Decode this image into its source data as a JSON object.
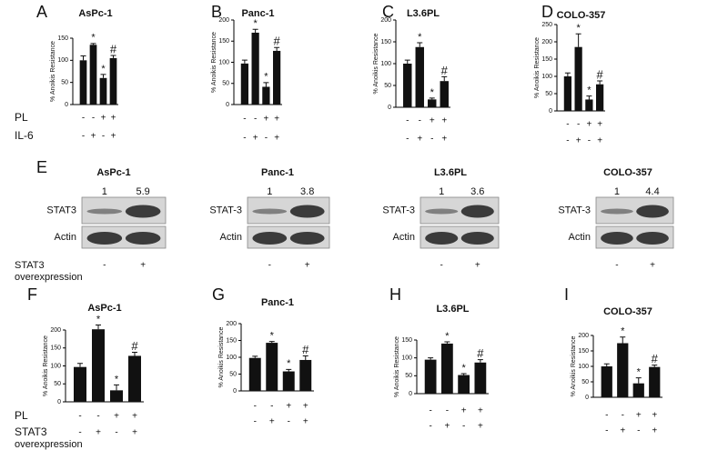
{
  "chart_data": [
    {
      "type": "bar",
      "letter": "A",
      "title": "AsPc-1",
      "y_label": "% Anoikis Resistance",
      "categories": [
        null,
        null,
        null,
        null
      ],
      "values": [
        100,
        135,
        60,
        105
      ],
      "errors": [
        10,
        3,
        8,
        6
      ],
      "markers": [
        null,
        "*",
        "*",
        "#"
      ],
      "color": "#111111",
      "ylim": [
        0,
        150
      ],
      "yticks": [
        0,
        50,
        100,
        150
      ],
      "rows": [
        {
          "label": "PL",
          "signs": [
            "-",
            "-",
            "+",
            "+"
          ]
        },
        {
          "label": "IL-6",
          "signs": [
            "-",
            "+",
            "-",
            "+"
          ]
        }
      ]
    },
    {
      "type": "bar",
      "letter": "B",
      "title": "Panc-1",
      "y_label": "% Anoikis Resistance",
      "categories": [
        null,
        null,
        null,
        null
      ],
      "values": [
        97,
        170,
        42,
        127
      ],
      "errors": [
        8,
        8,
        10,
        8
      ],
      "markers": [
        null,
        "*",
        "*",
        "#"
      ],
      "color": "#111111",
      "ylim": [
        0,
        200
      ],
      "yticks": [
        0,
        50,
        100,
        150,
        200
      ],
      "rows": [
        {
          "signs": [
            "-",
            "-",
            "+",
            "+"
          ]
        },
        {
          "signs": [
            "-",
            "+",
            "-",
            "+"
          ]
        }
      ]
    },
    {
      "type": "bar",
      "letter": "C",
      "title": "L3.6PL",
      "y_label": "% Anoikis Resistance",
      "categories": [
        null,
        null,
        null,
        null
      ],
      "values": [
        100,
        138,
        18,
        60
      ],
      "errors": [
        8,
        10,
        3,
        10
      ],
      "markers": [
        null,
        "*",
        "*",
        "#"
      ],
      "color": "#111111",
      "ylim": [
        0,
        200
      ],
      "yticks": [
        0,
        50,
        100,
        150,
        200
      ],
      "rows": [
        {
          "signs": [
            "-",
            "-",
            "+",
            "+"
          ]
        },
        {
          "signs": [
            "-",
            "+",
            "-",
            "+"
          ]
        }
      ]
    },
    {
      "type": "bar",
      "letter": "D",
      "title": "COLO-357",
      "y_label": "% Anoikis Resistance",
      "categories": [
        null,
        null,
        null,
        null
      ],
      "values": [
        100,
        185,
        33,
        77
      ],
      "errors": [
        10,
        38,
        10,
        10
      ],
      "markers": [
        null,
        "*",
        "*",
        "#"
      ],
      "color": "#111111",
      "ylim": [
        0,
        250
      ],
      "yticks": [
        0,
        50,
        100,
        150,
        200,
        250
      ],
      "rows": [
        {
          "signs": [
            "-",
            "-",
            "+",
            "+"
          ]
        },
        {
          "signs": [
            "-",
            "+",
            "-",
            "+"
          ]
        }
      ]
    },
    {
      "type": "bar",
      "letter": "F",
      "title": "AsPc-1",
      "y_label": "% Anoikis Resistance",
      "categories": [
        null,
        null,
        null,
        null
      ],
      "values": [
        97,
        202,
        32,
        128
      ],
      "errors": [
        10,
        12,
        15,
        10
      ],
      "markers": [
        null,
        "*",
        "*",
        "#"
      ],
      "color": "#111111",
      "ylim": [
        0,
        200
      ],
      "yticks": [
        0,
        50,
        100,
        150,
        200
      ],
      "rows": [
        {
          "label": "PL",
          "signs": [
            "-",
            "-",
            "+",
            "+"
          ]
        },
        {
          "label": "STAT3 overexpression",
          "signs": [
            "-",
            "+",
            "-",
            "+"
          ]
        }
      ]
    },
    {
      "type": "bar",
      "letter": "G",
      "title": "Panc-1",
      "y_label": "% Anoikis Resistance",
      "categories": [
        null,
        null,
        null,
        null
      ],
      "values": [
        98,
        143,
        58,
        92
      ],
      "errors": [
        5,
        4,
        6,
        12
      ],
      "markers": [
        null,
        "*",
        "*",
        "#"
      ],
      "color": "#111111",
      "ylim": [
        0,
        200
      ],
      "yticks": [
        0,
        50,
        100,
        150,
        200
      ],
      "rows": [
        {
          "signs": [
            "-",
            "-",
            "+",
            "+"
          ]
        },
        {
          "signs": [
            "-",
            "+",
            "-",
            "+"
          ]
        }
      ]
    },
    {
      "type": "bar",
      "letter": "H",
      "title": "L3.6PL",
      "y_label": "% Anoikis Resistance",
      "categories": [
        null,
        null,
        null,
        null
      ],
      "values": [
        95,
        140,
        52,
        87
      ],
      "errors": [
        5,
        5,
        4,
        8
      ],
      "markers": [
        null,
        "*",
        "*",
        "#"
      ],
      "color": "#111111",
      "ylim": [
        0,
        150
      ],
      "yticks": [
        0,
        50,
        100,
        150
      ],
      "rows": [
        {
          "signs": [
            "-",
            "-",
            "+",
            "+"
          ]
        },
        {
          "signs": [
            "-",
            "+",
            "-",
            "+"
          ]
        }
      ]
    },
    {
      "type": "bar",
      "letter": "I",
      "title": "COLO-357",
      "y_label": "% Anoikis Resistance",
      "categories": [
        null,
        null,
        null,
        null
      ],
      "values": [
        100,
        175,
        45,
        98
      ],
      "errors": [
        8,
        20,
        18,
        6
      ],
      "markers": [
        null,
        "*",
        "*",
        "#"
      ],
      "color": "#111111",
      "ylim": [
        0,
        200
      ],
      "yticks": [
        0,
        50,
        100,
        150,
        200
      ],
      "rows": [
        {
          "signs": [
            "-",
            "-",
            "+",
            "+"
          ]
        },
        {
          "signs": [
            "-",
            "+",
            "-",
            "+"
          ]
        }
      ]
    }
  ],
  "blots": {
    "letter": "E",
    "row_caption": "STAT3 overexpression",
    "panels": [
      {
        "title": "AsPc-1",
        "quant": [
          1,
          5.9
        ],
        "bands": [
          "STAT3",
          "Actin"
        ],
        "signs": [
          "-",
          "+"
        ]
      },
      {
        "title": "Panc-1",
        "quant": [
          1,
          3.8
        ],
        "bands": [
          "STAT-3",
          "Actin"
        ],
        "signs": [
          "-",
          "+"
        ]
      },
      {
        "title": "L3.6PL",
        "quant": [
          1,
          3.6
        ],
        "bands": [
          "STAT-3",
          "Actin"
        ],
        "signs": [
          "-",
          "+"
        ]
      },
      {
        "title": "COLO-357",
        "quant": [
          1,
          4.4
        ],
        "bands": [
          "STAT-3",
          "Actin"
        ],
        "signs": [
          "-",
          "+"
        ]
      }
    ]
  }
}
